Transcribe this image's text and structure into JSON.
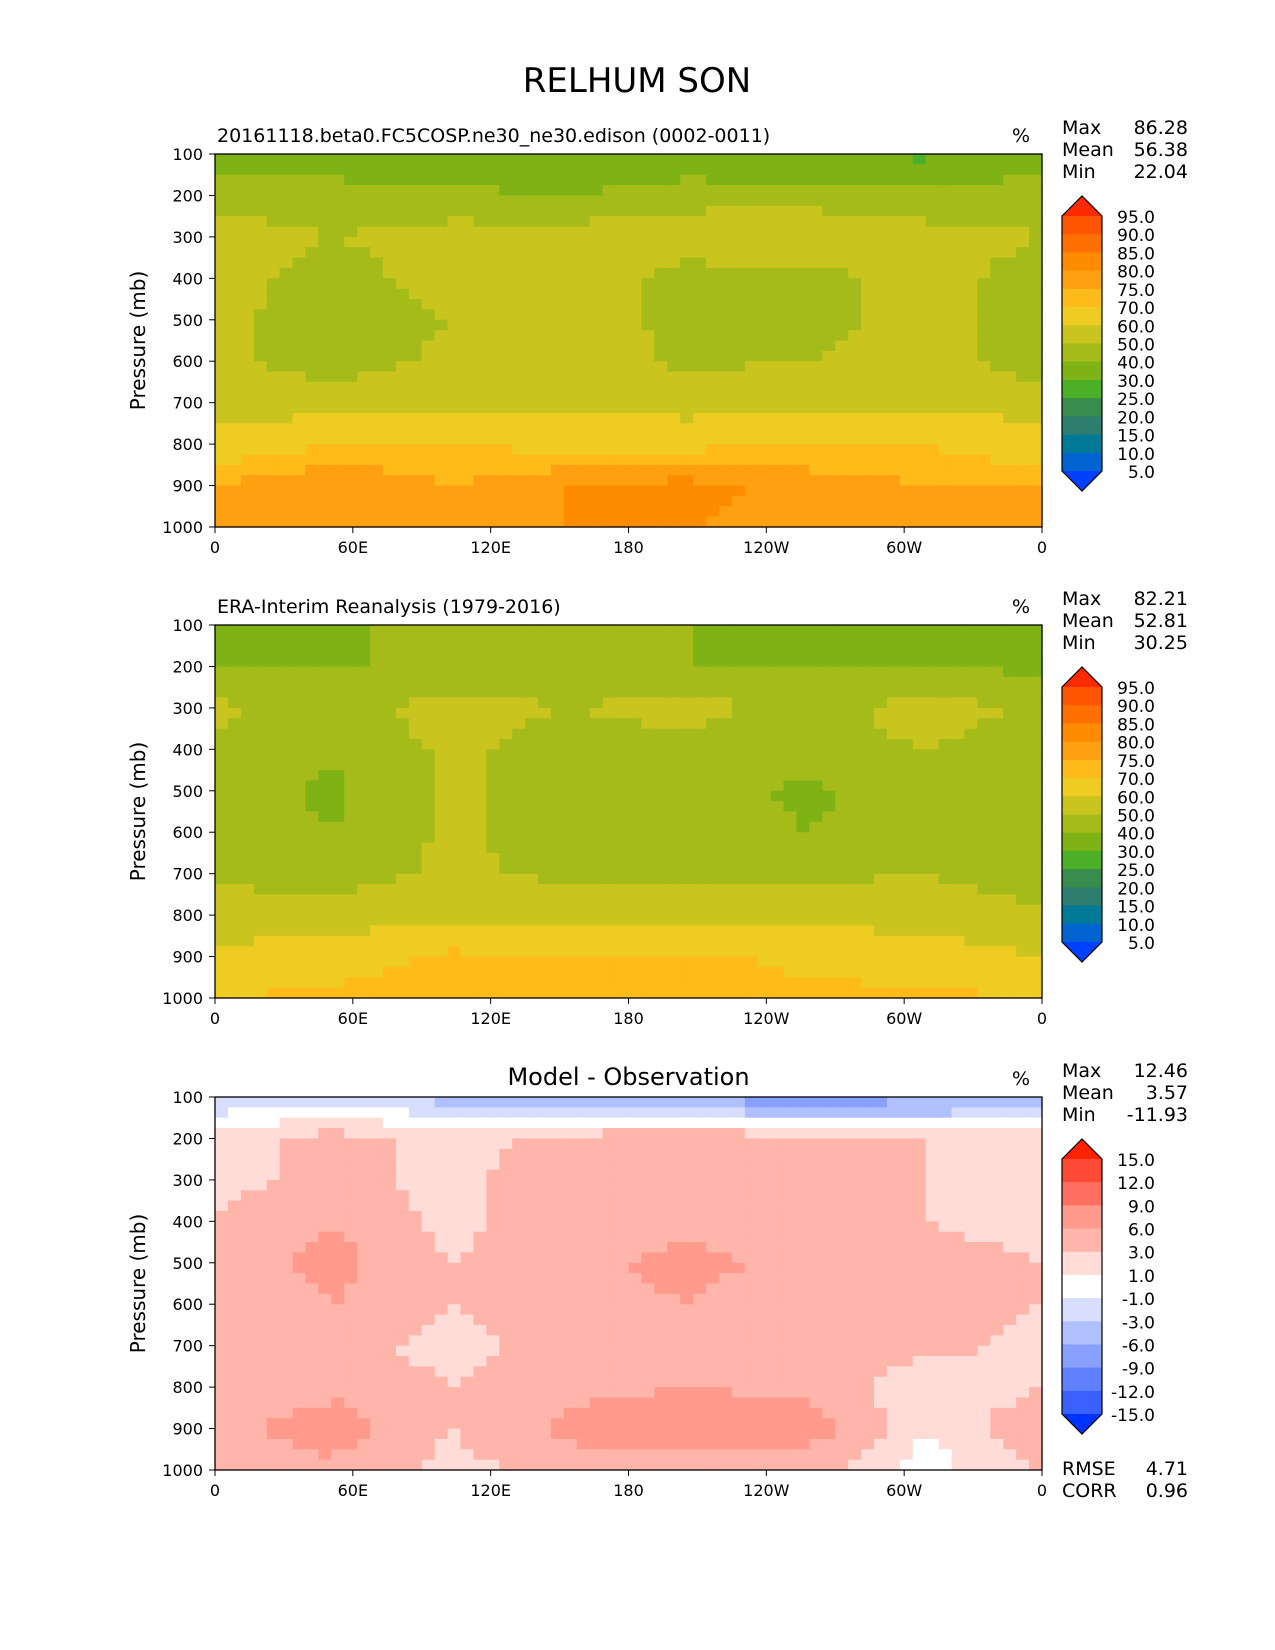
{
  "figure_title": "RELHUM SON",
  "panels": [
    {
      "title_left": "20161118.beta0.FC5COSP.ne30_ne30.edison (0002-0011)",
      "title_center": "",
      "units": "%",
      "stats": [
        {
          "label": "Max",
          "value": "86.28"
        },
        {
          "label": "Mean",
          "value": "56.38"
        },
        {
          "label": "Min",
          "value": "22.04"
        }
      ],
      "colorbar": "abs"
    },
    {
      "title_left": "ERA-Interim Reanalysis (1979-2016)",
      "title_center": "",
      "units": "%",
      "stats": [
        {
          "label": "Max",
          "value": "82.21"
        },
        {
          "label": "Mean",
          "value": "52.81"
        },
        {
          "label": "Min",
          "value": "30.25"
        }
      ],
      "colorbar": "abs"
    },
    {
      "title_left": "",
      "title_center": "Model - Observation",
      "units": "%",
      "stats": [
        {
          "label": "Max",
          "value": "12.46"
        },
        {
          "label": "Mean",
          "value": "3.57"
        },
        {
          "label": "Min",
          "value": "-11.93"
        }
      ],
      "colorbar": "diff",
      "extra_stats": [
        {
          "label": "RMSE",
          "value": "4.71"
        },
        {
          "label": "CORR",
          "value": "0.96"
        }
      ]
    }
  ],
  "axes": {
    "ylabel": "Pressure (mb)",
    "y_ticks": [
      "100",
      "200",
      "300",
      "400",
      "500",
      "600",
      "700",
      "800",
      "900",
      "1000"
    ],
    "x_ticks": [
      "0",
      "60E",
      "120E",
      "180",
      "120W",
      "60W",
      "0"
    ]
  },
  "colorbars": {
    "abs": {
      "levels": [
        "95.0",
        "90.0",
        "85.0",
        "80.0",
        "75.0",
        "70.0",
        "60.0",
        "50.0",
        "40.0",
        "30.0",
        "25.0",
        "20.0",
        "15.0",
        "10.0",
        "5.0"
      ],
      "colors": [
        "#ff2a00",
        "#ff5500",
        "#ff6f00",
        "#ff8c00",
        "#ffa010",
        "#ffbb1a",
        "#efcc22",
        "#c9c51e",
        "#a4bb1a",
        "#7fb214",
        "#4caf28",
        "#3a8b4e",
        "#2e7f70",
        "#007a96",
        "#0063cf",
        "#0040ff"
      ]
    },
    "diff": {
      "levels": [
        "15.0",
        "12.0",
        "9.0",
        "6.0",
        "3.0",
        "1.0",
        "-1.0",
        "-3.0",
        "-6.0",
        "-9.0",
        "-12.0",
        "-15.0"
      ],
      "colors": [
        "#ff2200",
        "#ff4a35",
        "#ff7060",
        "#ff9a8c",
        "#ffb5aa",
        "#ffdcd7",
        "#ffffff",
        "#d7deff",
        "#b0c0ff",
        "#8aa0ff",
        "#5f80ff",
        "#3a60ff",
        "#0033ff"
      ]
    }
  },
  "chart_data": [
    {
      "type": "heatmap",
      "title": "20161118.beta0.FC5COSP.ne30_ne30.edison (0002-0011)",
      "ylabel": "Pressure (mb)",
      "x": [
        "0",
        "60E",
        "120E",
        "180",
        "120W",
        "60W",
        "0"
      ],
      "y": [
        100,
        200,
        300,
        400,
        500,
        600,
        700,
        800,
        900,
        1000
      ],
      "ylim": [
        1000,
        100
      ],
      "units": "%",
      "contour_levels": [
        5,
        10,
        15,
        20,
        25,
        30,
        40,
        50,
        60,
        70,
        75,
        80,
        85,
        90,
        95
      ],
      "values": [
        [
          35,
          32,
          32,
          30,
          32,
          30,
          28,
          35
        ],
        [
          45,
          45,
          42,
          40,
          45,
          45,
          42,
          45
        ],
        [
          55,
          50,
          55,
          55,
          58,
          60,
          55,
          50
        ],
        [
          55,
          45,
          55,
          58,
          45,
          45,
          55,
          45
        ],
        [
          52,
          45,
          50,
          58,
          45,
          45,
          55,
          45
        ],
        [
          52,
          45,
          52,
          58,
          48,
          50,
          55,
          45
        ],
        [
          55,
          55,
          58,
          58,
          55,
          58,
          58,
          55
        ],
        [
          65,
          70,
          70,
          68,
          68,
          70,
          70,
          65
        ],
        [
          75,
          80,
          75,
          80,
          82,
          78,
          75,
          75
        ],
        [
          78,
          80,
          78,
          80,
          80,
          78,
          80,
          78
        ]
      ],
      "stats": {
        "Max": 86.28,
        "Mean": 56.38,
        "Min": 22.04
      }
    },
    {
      "type": "heatmap",
      "title": "ERA-Interim Reanalysis (1979-2016)",
      "ylabel": "Pressure (mb)",
      "x": [
        "0",
        "60E",
        "120E",
        "180",
        "120W",
        "60W",
        "0"
      ],
      "y": [
        100,
        200,
        300,
        400,
        500,
        600,
        700,
        800,
        900,
        1000
      ],
      "ylim": [
        1000,
        100
      ],
      "units": "%",
      "contour_levels": [
        5,
        10,
        15,
        20,
        25,
        30,
        40,
        50,
        60,
        70,
        75,
        80,
        85,
        90,
        95
      ],
      "values": [
        [
          38,
          38,
          45,
          45,
          40,
          38,
          40,
          38
        ],
        [
          40,
          40,
          40,
          40,
          40,
          40,
          40,
          38
        ],
        [
          52,
          45,
          55,
          50,
          55,
          45,
          55,
          48
        ],
        [
          48,
          42,
          52,
          45,
          45,
          45,
          50,
          45
        ],
        [
          45,
          38,
          52,
          45,
          45,
          38,
          45,
          42
        ],
        [
          45,
          40,
          52,
          45,
          45,
          40,
          45,
          45
        ],
        [
          48,
          45,
          52,
          48,
          48,
          48,
          50,
          45
        ],
        [
          55,
          55,
          58,
          55,
          55,
          58,
          55,
          52
        ],
        [
          62,
          65,
          72,
          70,
          72,
          68,
          65,
          60
        ],
        [
          70,
          72,
          75,
          75,
          75,
          72,
          72,
          70
        ]
      ],
      "stats": {
        "Max": 82.21,
        "Mean": 52.81,
        "Min": 30.25
      }
    },
    {
      "type": "heatmap",
      "title": "Model - Observation",
      "ylabel": "Pressure (mb)",
      "x": [
        "0",
        "60E",
        "120E",
        "180",
        "120W",
        "60W",
        "0"
      ],
      "y": [
        100,
        200,
        300,
        400,
        500,
        600,
        700,
        800,
        900,
        1000
      ],
      "ylim": [
        1000,
        100
      ],
      "units": "%",
      "contour_levels": [
        -15,
        -12,
        -9,
        -6,
        -3,
        -1,
        1,
        3,
        6,
        9,
        12,
        15
      ],
      "values": [
        [
          -3,
          -2,
          -4,
          -6,
          -7,
          -8,
          -7,
          -5
        ],
        [
          2,
          4,
          2,
          4,
          5,
          4,
          3,
          2
        ],
        [
          2,
          4,
          2,
          5,
          6,
          5,
          3,
          2
        ],
        [
          3,
          6,
          2,
          5,
          5,
          4,
          3,
          2
        ],
        [
          4,
          7,
          3,
          5,
          7,
          5,
          4,
          3
        ],
        [
          4,
          6,
          3,
          5,
          6,
          4,
          5,
          3
        ],
        [
          3,
          4,
          2,
          4,
          4,
          5,
          4,
          2
        ],
        [
          3,
          5,
          3,
          5,
          6,
          5,
          1,
          3
        ],
        [
          5,
          8,
          3,
          7,
          9,
          8,
          1,
          5
        ],
        [
          4,
          5,
          2,
          4,
          4,
          4,
          0,
          3
        ]
      ],
      "stats": {
        "Max": 12.46,
        "Mean": 3.57,
        "Min": -11.93,
        "RMSE": 4.71,
        "CORR": 0.96
      }
    }
  ]
}
